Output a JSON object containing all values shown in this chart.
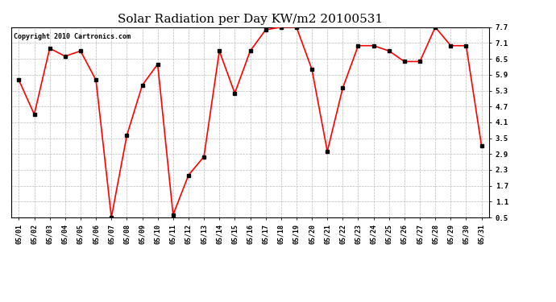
{
  "title": "Solar Radiation per Day KW/m2 20100531",
  "copyright": "Copyright 2010 Cartronics.com",
  "dates": [
    "05/01",
    "05/02",
    "05/03",
    "05/04",
    "05/05",
    "05/06",
    "05/07",
    "05/08",
    "05/09",
    "05/10",
    "05/11",
    "05/12",
    "05/13",
    "05/14",
    "05/15",
    "05/16",
    "05/17",
    "05/18",
    "05/19",
    "05/20",
    "05/21",
    "05/22",
    "05/23",
    "05/24",
    "05/25",
    "05/26",
    "05/27",
    "05/28",
    "05/29",
    "05/30",
    "05/31"
  ],
  "values": [
    5.7,
    4.4,
    6.9,
    6.6,
    6.8,
    5.7,
    0.5,
    3.6,
    5.5,
    6.3,
    0.6,
    2.1,
    2.8,
    6.8,
    5.2,
    6.8,
    7.6,
    7.7,
    7.7,
    6.1,
    3.0,
    5.4,
    7.0,
    7.0,
    6.8,
    6.4,
    6.4,
    7.7,
    7.0,
    7.0,
    3.2
  ],
  "ylim": [
    0.5,
    7.7
  ],
  "yticks": [
    0.5,
    1.1,
    1.7,
    2.3,
    2.9,
    3.5,
    4.1,
    4.7,
    5.3,
    5.9,
    6.5,
    7.1,
    7.7
  ],
  "line_color": "red",
  "marker": "s",
  "marker_size": 2.5,
  "marker_color": "black",
  "grid_color": "#bbbbbb",
  "bg_color": "white",
  "title_fontsize": 11,
  "tick_fontsize": 6,
  "copyright_fontsize": 6,
  "fig_width": 6.9,
  "fig_height": 3.75,
  "dpi": 100
}
